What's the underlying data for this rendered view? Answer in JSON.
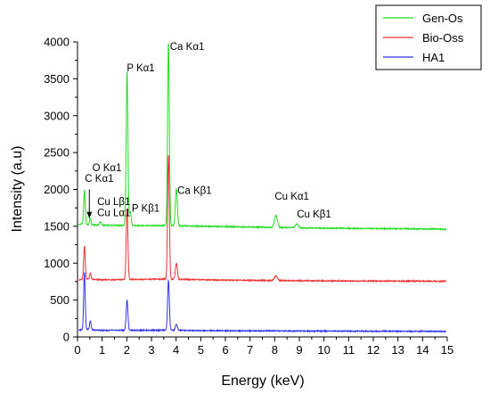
{
  "chart_data": {
    "type": "line",
    "xlabel": "Energy (keV)",
    "ylabel": "Intensity (a.u)",
    "xlim": [
      0,
      15
    ],
    "ylim": [
      0,
      4000
    ],
    "xticks": [
      0,
      1,
      2,
      3,
      4,
      5,
      6,
      7,
      8,
      9,
      10,
      11,
      12,
      13,
      14,
      15
    ],
    "yticks": [
      0,
      500,
      1000,
      1500,
      2000,
      2500,
      3000,
      3500,
      4000
    ],
    "grid": false,
    "legend_position": "top-right",
    "series": [
      {
        "name": "Gen-Os",
        "color": "#22dd22",
        "baseline": [
          [
            0.05,
            1520
          ],
          [
            0.2,
            1540
          ],
          [
            0.5,
            1520
          ],
          [
            1.0,
            1515
          ],
          [
            2.5,
            1510
          ],
          [
            3.5,
            1510
          ],
          [
            4.5,
            1505
          ],
          [
            6,
            1495
          ],
          [
            8,
            1485
          ],
          [
            10,
            1475
          ],
          [
            12,
            1470
          ],
          [
            14,
            1465
          ],
          [
            14.95,
            1460
          ]
        ],
        "peaks": [
          {
            "x": 0.28,
            "height": 1990,
            "width": 0.03
          },
          {
            "x": 0.52,
            "height": 1610,
            "width": 0.03
          },
          {
            "x": 0.93,
            "height": 1560,
            "width": 0.04
          },
          {
            "x": 2.01,
            "height": 3600,
            "width": 0.035
          },
          {
            "x": 2.14,
            "height": 1700,
            "width": 0.035
          },
          {
            "x": 3.69,
            "height": 3990,
            "width": 0.035
          },
          {
            "x": 4.01,
            "height": 2010,
            "width": 0.04
          },
          {
            "x": 8.05,
            "height": 1650,
            "width": 0.06
          },
          {
            "x": 8.9,
            "height": 1530,
            "width": 0.06
          }
        ]
      },
      {
        "name": "Bio-Oss",
        "color": "#ee3333",
        "baseline": [
          [
            0.05,
            770
          ],
          [
            0.3,
            790
          ],
          [
            0.6,
            780
          ],
          [
            1.0,
            775
          ],
          [
            2.5,
            780
          ],
          [
            3.5,
            785
          ],
          [
            4.5,
            780
          ],
          [
            6,
            770
          ],
          [
            8,
            765
          ],
          [
            10,
            760
          ],
          [
            12,
            758
          ],
          [
            14,
            757
          ],
          [
            14.95,
            755
          ]
        ],
        "peaks": [
          {
            "x": 0.28,
            "height": 1240,
            "width": 0.03
          },
          {
            "x": 0.52,
            "height": 860,
            "width": 0.03
          },
          {
            "x": 2.01,
            "height": 1720,
            "width": 0.035
          },
          {
            "x": 3.69,
            "height": 2470,
            "width": 0.035
          },
          {
            "x": 4.01,
            "height": 1000,
            "width": 0.04
          },
          {
            "x": 8.05,
            "height": 830,
            "width": 0.06
          }
        ]
      },
      {
        "name": "HA1",
        "color": "#3333ee",
        "baseline": [
          [
            0.05,
            90
          ],
          [
            0.3,
            110
          ],
          [
            0.6,
            95
          ],
          [
            1.0,
            90
          ],
          [
            2.5,
            90
          ],
          [
            3.5,
            92
          ],
          [
            4.5,
            88
          ],
          [
            6,
            85
          ],
          [
            8,
            82
          ],
          [
            10,
            80
          ],
          [
            12,
            78
          ],
          [
            14,
            77
          ],
          [
            14.95,
            75
          ]
        ],
        "peaks": [
          {
            "x": 0.28,
            "height": 880,
            "width": 0.03
          },
          {
            "x": 0.52,
            "height": 220,
            "width": 0.03
          },
          {
            "x": 2.01,
            "height": 500,
            "width": 0.035
          },
          {
            "x": 3.69,
            "height": 770,
            "width": 0.035
          },
          {
            "x": 4.01,
            "height": 170,
            "width": 0.04
          }
        ]
      }
    ],
    "annotations": [
      {
        "text": "C Kα1",
        "x": 0.3,
        "y": 2100
      },
      {
        "text": "O Kα1",
        "x": 0.6,
        "y": 2250
      },
      {
        "text": "Cu Lβ1",
        "x": 0.8,
        "y": 1790
      },
      {
        "text": "Cu Lα1",
        "x": 0.8,
        "y": 1640
      },
      {
        "text": "P Kβ1",
        "x": 2.2,
        "y": 1700
      },
      {
        "text": "P Kα1",
        "x": 2.0,
        "y": 3600
      },
      {
        "text": "Ca Kα1",
        "x": 3.75,
        "y": 3890
      },
      {
        "text": "Ca Kβ1",
        "x": 4.05,
        "y": 1940
      },
      {
        "text": "Cu Kα1",
        "x": 8.0,
        "y": 1860
      },
      {
        "text": "Cu Kβ1",
        "x": 8.9,
        "y": 1620
      }
    ],
    "arrow": {
      "from": [
        0.48,
        2000
      ],
      "to": [
        0.48,
        1610
      ]
    }
  }
}
